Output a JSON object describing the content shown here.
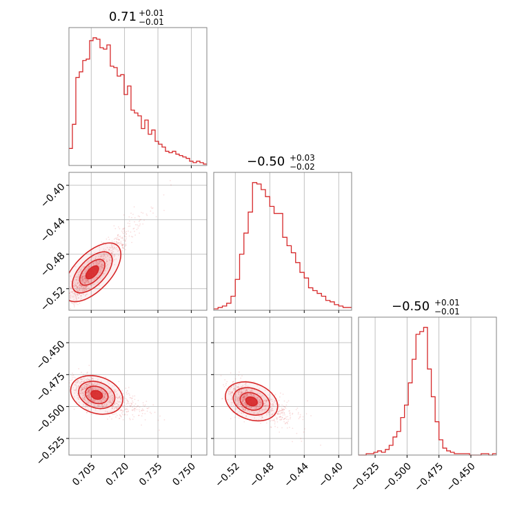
{
  "chart_data": [
    {
      "type": "histogram",
      "panel": "p0_0",
      "param_index": 0,
      "title": {
        "value": "0.71",
        "upper": "+0.01",
        "lower": "−0.01"
      },
      "xlim": [
        0.695,
        0.757
      ],
      "xticks": [
        0.705,
        0.72,
        0.735,
        0.75
      ],
      "bin_edges_range": [
        0.695,
        0.757
      ],
      "counts": [
        0.12,
        0.29,
        0.62,
        0.66,
        0.74,
        0.75,
        0.88,
        0.9,
        0.89,
        0.83,
        0.82,
        0.85,
        0.7,
        0.69,
        0.63,
        0.64,
        0.5,
        0.56,
        0.39,
        0.37,
        0.35,
        0.26,
        0.32,
        0.22,
        0.25,
        0.17,
        0.15,
        0.13,
        0.1,
        0.09,
        0.1,
        0.08,
        0.07,
        0.06,
        0.05,
        0.03,
        0.02,
        0.03,
        0.02,
        0.01
      ],
      "color": "#d62728"
    },
    {
      "type": "scatter_contour",
      "panel": "p1_0",
      "x_param": 0,
      "y_param": 1,
      "xlim": [
        0.695,
        0.757
      ],
      "ylim": [
        -0.545,
        -0.385
      ],
      "yticks": [
        -0.52,
        -0.48,
        -0.44,
        -0.4
      ],
      "ytick_labels": [
        "−0.52",
        "−0.48",
        "−0.44",
        "−0.40"
      ],
      "trend": {
        "slope": 2.7,
        "anchor_x": 0.704,
        "anchor_y": -0.505
      },
      "color": "#d62728"
    },
    {
      "type": "histogram",
      "panel": "p1_1",
      "param_index": 1,
      "title": {
        "value": "−0.50",
        "upper": "+0.03",
        "lower": "−0.02"
      },
      "xlim": [
        -0.545,
        -0.385
      ],
      "xticks": [
        -0.52,
        -0.48,
        -0.44,
        -0.4
      ],
      "bin_edges_range": [
        -0.545,
        -0.385
      ],
      "counts": [
        0.01,
        0.02,
        0.03,
        0.05,
        0.1,
        0.22,
        0.4,
        0.55,
        0.7,
        0.91,
        0.9,
        0.86,
        0.81,
        0.74,
        0.69,
        0.69,
        0.52,
        0.46,
        0.41,
        0.34,
        0.27,
        0.23,
        0.16,
        0.14,
        0.12,
        0.1,
        0.07,
        0.06,
        0.04,
        0.03,
        0.02,
        0.02
      ],
      "color": "#d62728"
    },
    {
      "type": "scatter_contour",
      "panel": "p2_0",
      "x_param": 0,
      "y_param": 2,
      "xlim": [
        0.695,
        0.757
      ],
      "ylim": [
        -0.538,
        -0.43
      ],
      "yticks": [
        -0.525,
        -0.5,
        -0.475,
        -0.45
      ],
      "ytick_labels": [
        "−0.525",
        "−0.500",
        "−0.475",
        "−0.450"
      ],
      "xtick_labels": [
        "0.705",
        "0.720",
        "0.735",
        "0.750"
      ],
      "trend": {
        "slope": -0.6,
        "anchor_x": 0.706,
        "anchor_y": -0.49
      },
      "color": "#d62728"
    },
    {
      "type": "scatter_contour",
      "panel": "p2_1",
      "x_param": 1,
      "y_param": 2,
      "xlim": [
        -0.545,
        -0.385
      ],
      "ylim": [
        -0.538,
        -0.43
      ],
      "xtick_labels": [
        "−0.52",
        "−0.48",
        "−0.44",
        "−0.40"
      ],
      "trend": {
        "slope": -0.25,
        "anchor_x": -0.505,
        "anchor_y": -0.495
      },
      "color": "#d62728"
    },
    {
      "type": "histogram",
      "panel": "p2_2",
      "param_index": 2,
      "title": {
        "value": "−0.50",
        "upper": "+0.01",
        "lower": "−0.01"
      },
      "xlim": [
        -0.538,
        -0.43
      ],
      "xticks": [
        -0.525,
        -0.5,
        -0.475,
        -0.45
      ],
      "xtick_labels": [
        "−0.525",
        "−0.500",
        "−0.475",
        "−0.450"
      ],
      "bin_edges_range": [
        -0.538,
        -0.43
      ],
      "counts": [
        0,
        0,
        0.01,
        0.01,
        0.02,
        0.03,
        0.02,
        0.04,
        0.07,
        0.13,
        0.17,
        0.27,
        0.36,
        0.52,
        0.69,
        0.87,
        0.89,
        0.92,
        0.62,
        0.42,
        0.24,
        0.11,
        0.05,
        0.03,
        0.02,
        0.01,
        0.01,
        0.01,
        0.01,
        0,
        0,
        0,
        0.01,
        0.01,
        0,
        0.01
      ],
      "color": "#d62728"
    }
  ]
}
